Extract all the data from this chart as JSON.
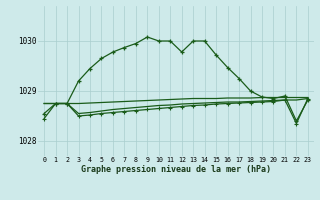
{
  "title": "Graphe pression niveau de la mer (hPa)",
  "bg_color": "#ceeaea",
  "grid_color": "#aacece",
  "line_color": "#1a5c1a",
  "ylim": [
    1027.7,
    1030.7
  ],
  "yticks": [
    1028,
    1029,
    1030
  ],
  "series1": [
    1028.55,
    1028.75,
    1028.75,
    1029.2,
    1029.45,
    1029.65,
    1029.78,
    1029.87,
    1029.95,
    1030.08,
    1030.0,
    1030.0,
    1029.78,
    1030.0,
    1030.0,
    1029.72,
    1029.47,
    1029.25,
    1029.0,
    1028.88,
    1028.85,
    1028.9,
    1028.4,
    1028.82
  ],
  "series2": [
    1028.75,
    1028.75,
    1028.75,
    1028.75,
    1028.76,
    1028.77,
    1028.78,
    1028.79,
    1028.8,
    1028.81,
    1028.82,
    1028.83,
    1028.84,
    1028.85,
    1028.85,
    1028.85,
    1028.86,
    1028.86,
    1028.86,
    1028.87,
    1028.87,
    1028.87,
    1028.87,
    1028.87
  ],
  "series3": [
    1028.75,
    1028.75,
    1028.75,
    1028.55,
    1028.57,
    1028.6,
    1028.63,
    1028.65,
    1028.67,
    1028.69,
    1028.71,
    1028.72,
    1028.74,
    1028.75,
    1028.76,
    1028.77,
    1028.78,
    1028.78,
    1028.79,
    1028.8,
    1028.81,
    1028.82,
    1028.82,
    1028.85
  ],
  "series4": [
    1028.45,
    1028.75,
    1028.75,
    1028.5,
    1028.52,
    1028.55,
    1028.57,
    1028.59,
    1028.61,
    1028.63,
    1028.65,
    1028.67,
    1028.69,
    1028.71,
    1028.72,
    1028.74,
    1028.75,
    1028.76,
    1028.77,
    1028.78,
    1028.79,
    1028.82,
    1028.35,
    1028.85
  ]
}
